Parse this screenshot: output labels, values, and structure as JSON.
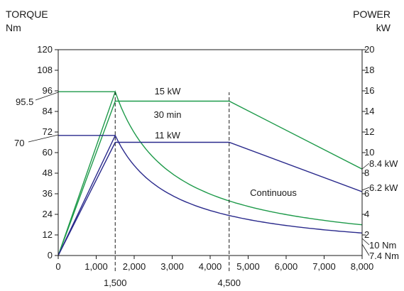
{
  "chart_data": {
    "type": "line",
    "left_axis": {
      "title": "TORQUE",
      "unit": "Nm",
      "ticks": [
        0,
        12,
        24,
        36,
        48,
        60,
        72,
        84,
        96,
        108,
        120
      ],
      "range": [
        0,
        120
      ]
    },
    "right_axis": {
      "title": "POWER",
      "unit": "kW",
      "ticks": [
        2,
        4,
        6,
        8,
        10,
        12,
        14,
        16,
        18,
        20
      ],
      "range": [
        0,
        20
      ]
    },
    "x_axis": {
      "ticks": [
        0,
        1000,
        2000,
        3000,
        4000,
        5000,
        6000,
        7000,
        8000
      ],
      "tick_labels": [
        "0",
        "1,000",
        "2,000",
        "3,000",
        "4,000",
        "5,000",
        "6,000",
        "7,000",
        "8,000"
      ],
      "range": [
        0,
        8000
      ],
      "extra_labels": [
        {
          "x": 1500,
          "text": "1,500"
        },
        {
          "x": 4500,
          "text": "4,500"
        }
      ]
    },
    "colors": {
      "thirty_min": "#1e9a4a",
      "continuous": "#2a2a8c"
    },
    "series": [
      {
        "key": "torque_30min",
        "axis": "left",
        "color": "#1e9a4a",
        "points": [
          [
            0,
            0
          ],
          [
            1500,
            95.5
          ],
          [
            1500,
            95.5
          ]
        ],
        "hyperbolic_after": 1500,
        "end_x": 8000,
        "base": 95.5
      },
      {
        "key": "power_30min",
        "axis": "right",
        "color": "#1e9a4a",
        "points": [
          [
            0,
            0
          ],
          [
            1500,
            15
          ],
          [
            4500,
            15
          ],
          [
            8000,
            8.4
          ]
        ]
      },
      {
        "key": "torque_cont",
        "axis": "left",
        "color": "#2a2a8c",
        "points": [
          [
            0,
            0
          ],
          [
            1500,
            70
          ],
          [
            1500,
            70
          ]
        ],
        "hyperbolic_after": 1500,
        "end_x": 8000,
        "base": 70
      },
      {
        "key": "power_cont",
        "axis": "right",
        "color": "#2a2a8c",
        "points": [
          [
            0,
            0
          ],
          [
            1500,
            11
          ],
          [
            4500,
            11
          ],
          [
            8000,
            6.2
          ]
        ]
      }
    ],
    "guide_lines_x": [
      1500,
      4500
    ],
    "annotations": {
      "p30": "15 kW",
      "d30": "30 min",
      "pcont": "11 kW",
      "cont": "Continuous",
      "torque30_value": "95.5",
      "torquecont_value": "70",
      "power30_end": "8.4 kW",
      "powercont_end": "6.2 kW",
      "torque30_end": "10 Nm",
      "torquecont_end": "7.4 Nm"
    }
  }
}
